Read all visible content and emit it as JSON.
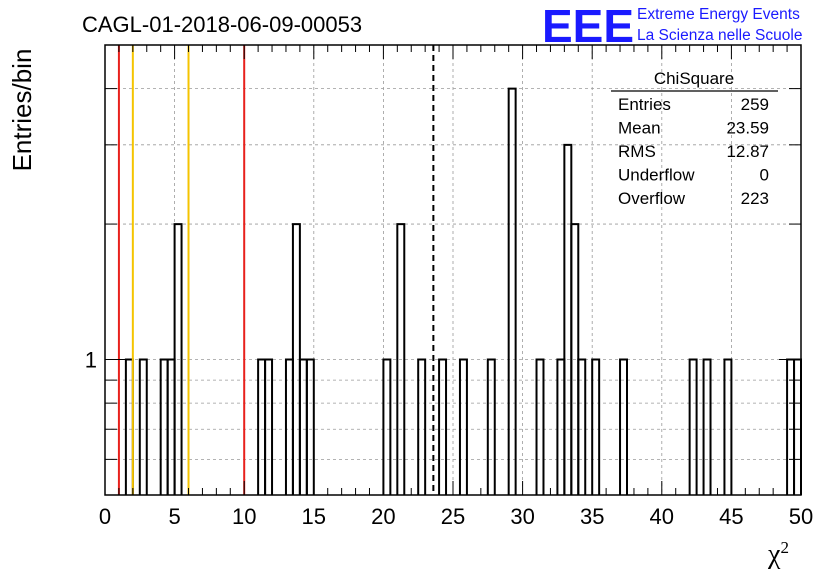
{
  "chart_data": {
    "type": "bar",
    "title": "CAGL-01-2018-06-09-00053",
    "xlabel": "χ",
    "xlabel_sup": "2",
    "ylabel": "Entries/bin",
    "xlim": [
      0,
      50
    ],
    "ylim": [
      0.5,
      5
    ],
    "yscale": "log",
    "bin_width": 0.5,
    "x_ticks": [
      "0",
      "5",
      "10",
      "15",
      "20",
      "25",
      "30",
      "35",
      "40",
      "45",
      "50"
    ],
    "y_ticks": [
      "1"
    ],
    "grid": true,
    "bins": [
      {
        "x": 1.5,
        "y": 1
      },
      {
        "x": 2.5,
        "y": 1
      },
      {
        "x": 4.0,
        "y": 1
      },
      {
        "x": 4.5,
        "y": 1
      },
      {
        "x": 5.0,
        "y": 2
      },
      {
        "x": 11.0,
        "y": 1
      },
      {
        "x": 11.5,
        "y": 1
      },
      {
        "x": 13.0,
        "y": 1
      },
      {
        "x": 13.5,
        "y": 2
      },
      {
        "x": 14.0,
        "y": 1
      },
      {
        "x": 14.5,
        "y": 1
      },
      {
        "x": 20.0,
        "y": 1
      },
      {
        "x": 21.0,
        "y": 2
      },
      {
        "x": 22.5,
        "y": 1
      },
      {
        "x": 24.0,
        "y": 1
      },
      {
        "x": 25.5,
        "y": 1
      },
      {
        "x": 27.5,
        "y": 1
      },
      {
        "x": 29.0,
        "y": 4
      },
      {
        "x": 31.0,
        "y": 1
      },
      {
        "x": 32.5,
        "y": 1
      },
      {
        "x": 33.0,
        "y": 3
      },
      {
        "x": 33.5,
        "y": 2
      },
      {
        "x": 34.0,
        "y": 1
      },
      {
        "x": 35.0,
        "y": 1
      },
      {
        "x": 37.0,
        "y": 1
      },
      {
        "x": 42.0,
        "y": 1
      },
      {
        "x": 43.0,
        "y": 1
      },
      {
        "x": 44.5,
        "y": 1
      },
      {
        "x": 49.0,
        "y": 1
      },
      {
        "x": 49.5,
        "y": 1
      }
    ],
    "vertical_lines": [
      {
        "x": 1.0,
        "color": "#e8211c",
        "style": "solid"
      },
      {
        "x": 2.0,
        "color": "#f5c400",
        "style": "solid"
      },
      {
        "x": 6.0,
        "color": "#f5c400",
        "style": "solid"
      },
      {
        "x": 10.0,
        "color": "#e8211c",
        "style": "solid"
      },
      {
        "x": 23.59,
        "color": "#000000",
        "style": "dashed"
      }
    ],
    "stats": {
      "title": "ChiSquare",
      "rows": [
        {
          "label": "Entries",
          "value": "259"
        },
        {
          "label": "Mean",
          "value": "23.59"
        },
        {
          "label": "RMS",
          "value": "12.87"
        },
        {
          "label": "Underflow",
          "value": "0"
        },
        {
          "label": "Overflow",
          "value": "223"
        }
      ]
    }
  },
  "logo": {
    "mark": "EEE",
    "line1": "Extreme Energy Events",
    "line2": "La Scienza nelle Scuole",
    "color": "#1a1aff"
  }
}
